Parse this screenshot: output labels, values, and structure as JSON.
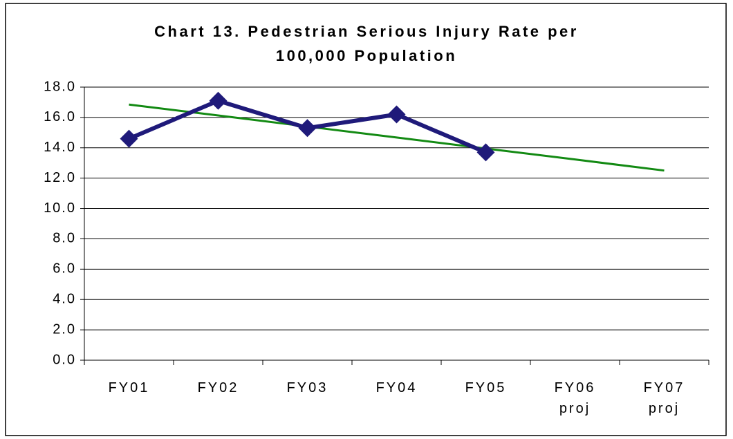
{
  "chart_data": {
    "type": "line",
    "title": "Chart 13. Pedestrian Serious Injury Rate per 100,000 Population",
    "categories": [
      "FY01",
      "FY02",
      "FY03",
      "FY04",
      "FY05",
      "FY06 proj",
      "FY07 proj"
    ],
    "series": [
      {
        "color": "#1f1a7a",
        "marker": "diamond",
        "values": [
          14.6,
          17.1,
          15.3,
          16.2,
          13.7,
          null,
          null
        ]
      },
      {
        "color": "#138a13",
        "trendline": true,
        "values": [
          16.85,
          16.13,
          15.4,
          14.68,
          13.95,
          13.23,
          12.5
        ]
      }
    ],
    "ylim": [
      0,
      18
    ],
    "yticks": [
      {
        "value": 0,
        "label": "0.0"
      },
      {
        "value": 2,
        "label": "2.0"
      },
      {
        "value": 4,
        "label": "4.0"
      },
      {
        "value": 6,
        "label": "6.0"
      },
      {
        "value": 8,
        "label": "8.0"
      },
      {
        "value": 10,
        "label": "10.0"
      },
      {
        "value": 12,
        "label": "12.0"
      },
      {
        "value": 14,
        "label": "14.0"
      },
      {
        "value": 16,
        "label": "16.0"
      },
      {
        "value": 18,
        "label": "18.0"
      }
    ],
    "grid": true
  }
}
